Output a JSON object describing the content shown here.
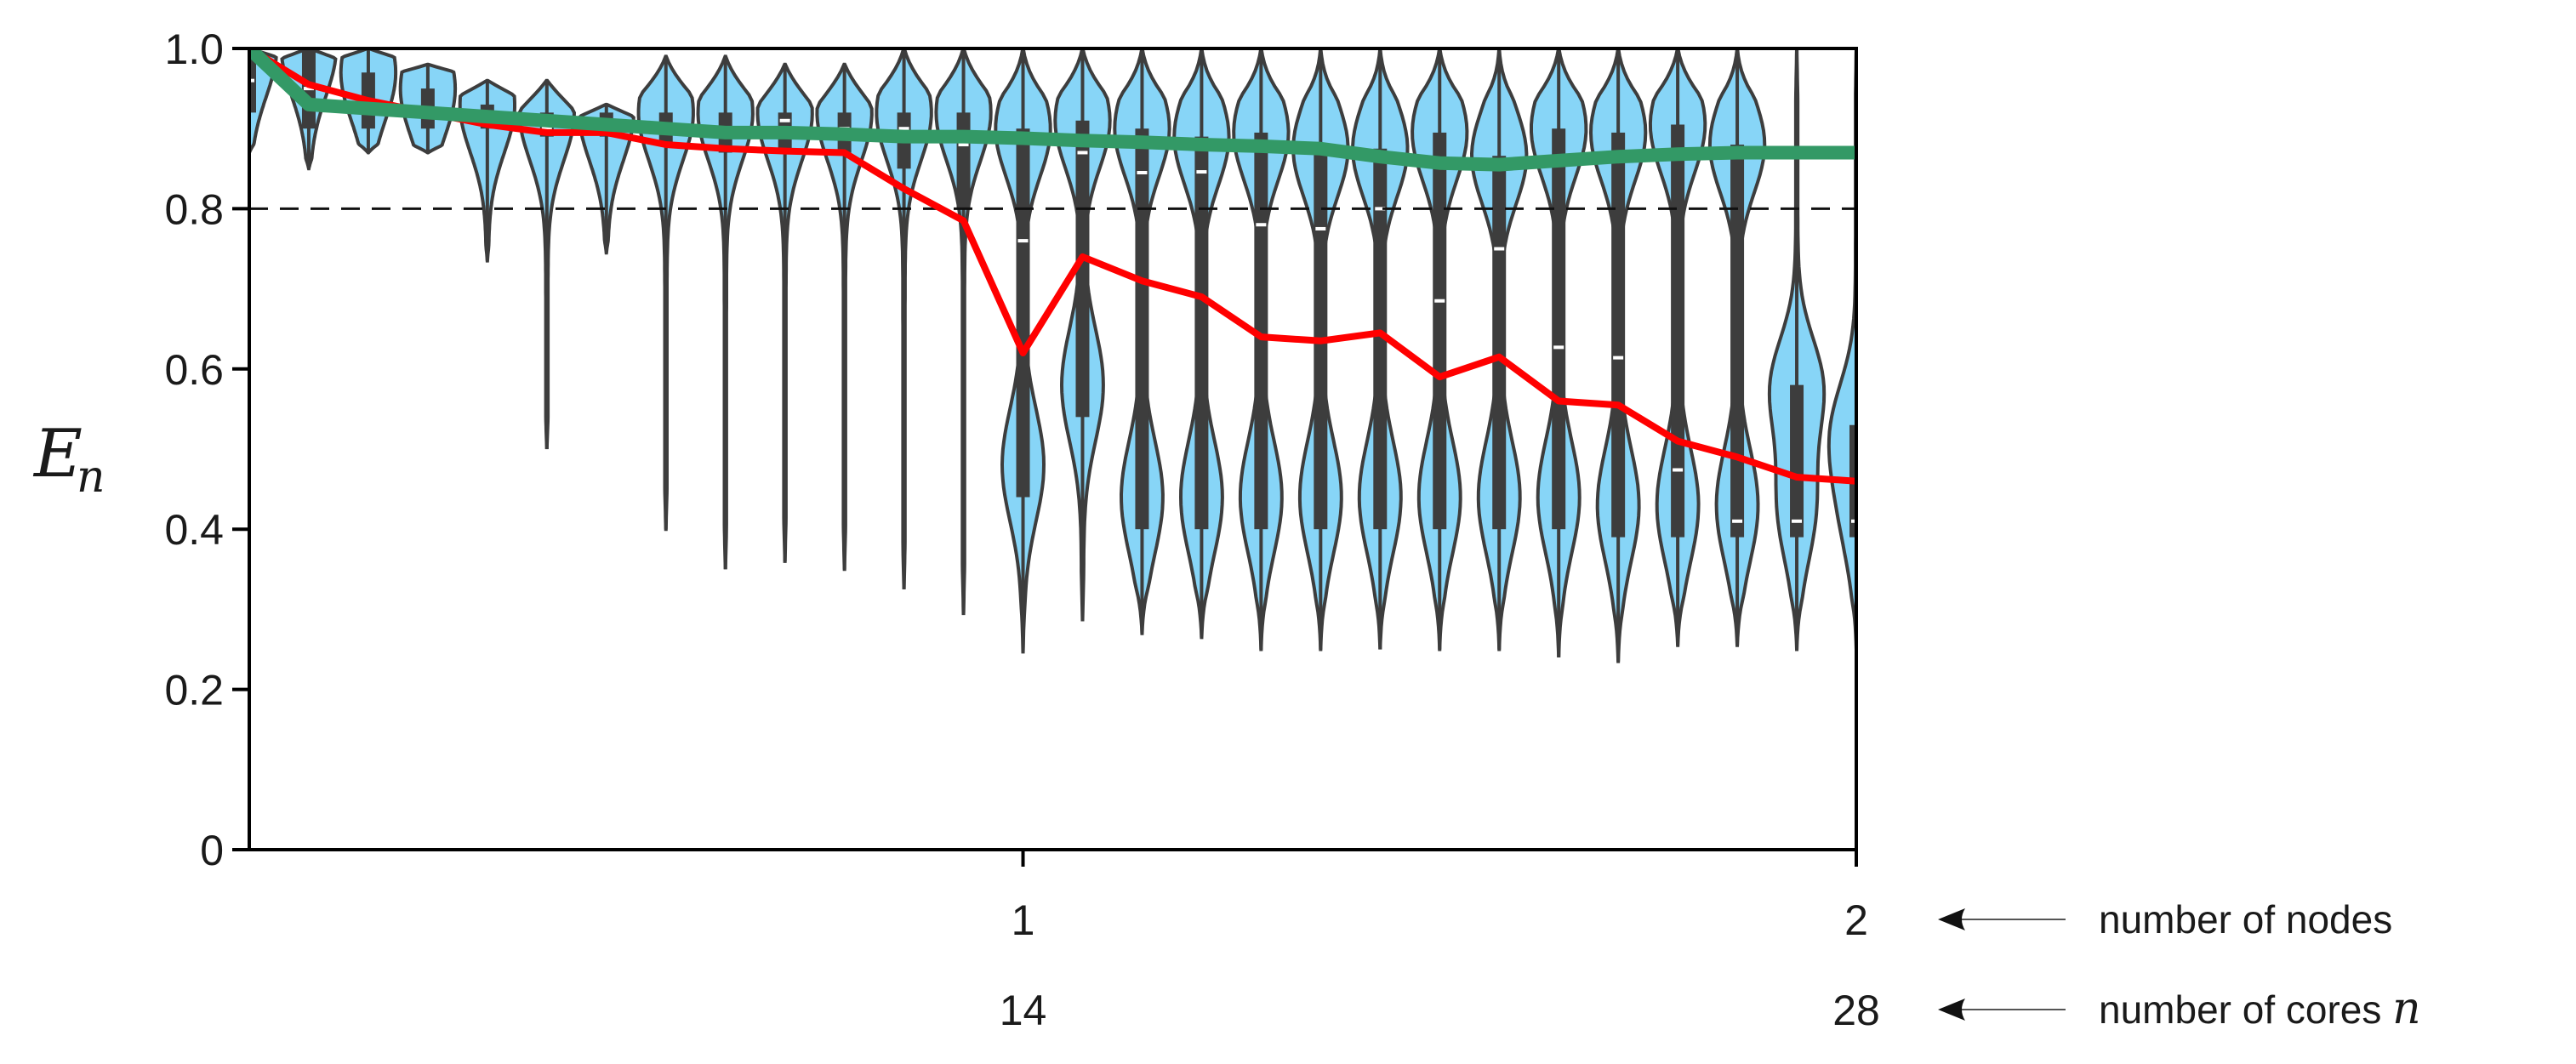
{
  "chart_data": {
    "type": "violin",
    "ylabel": {
      "main": "E",
      "sub": "n"
    },
    "ylim": [
      0,
      1.0
    ],
    "yticks": [
      {
        "v": 0,
        "label": "0"
      },
      {
        "v": 0.2,
        "label": "0.2"
      },
      {
        "v": 0.4,
        "label": "0.4"
      },
      {
        "v": 0.6,
        "label": "0.6"
      },
      {
        "v": 0.8,
        "label": "0.8"
      },
      {
        "v": 1.0,
        "label": "1.0"
      }
    ],
    "xlim": [
      1,
      28
    ],
    "xticks": [
      {
        "cores": 14,
        "nodes_label": "1",
        "cores_label": "14"
      },
      {
        "cores": 28,
        "nodes_label": "2",
        "cores_label": "28"
      }
    ],
    "axis_annotations": {
      "nodes": "number of nodes",
      "cores": "number of cores",
      "cores_symbol": "n"
    },
    "reference_line": {
      "y": 0.8,
      "style": "dashed"
    },
    "cores": [
      1,
      2,
      3,
      4,
      5,
      6,
      7,
      8,
      9,
      10,
      11,
      12,
      13,
      14,
      15,
      16,
      17,
      18,
      19,
      20,
      21,
      22,
      23,
      24,
      25,
      26,
      27,
      28
    ],
    "violins": [
      {
        "min": 0.87,
        "q1": 0.92,
        "median": 0.96,
        "q3": 1.0,
        "max": 1.0
      },
      {
        "min": 0.85,
        "q1": 0.9,
        "median": 0.95,
        "q3": 1.0,
        "max": 1.0
      },
      {
        "min": 0.87,
        "q1": 0.9,
        "median": 0.93,
        "q3": 0.97,
        "max": 1.0
      },
      {
        "min": 0.87,
        "q1": 0.9,
        "median": 0.92,
        "q3": 0.95,
        "max": 0.98
      },
      {
        "min": 0.735,
        "q1": 0.9,
        "median": 0.91,
        "q3": 0.93,
        "max": 0.96
      },
      {
        "min": 0.5,
        "q1": 0.89,
        "median": 0.9,
        "q3": 0.92,
        "max": 0.96
      },
      {
        "min": 0.745,
        "q1": 0.89,
        "median": 0.9,
        "q3": 0.92,
        "max": 0.93
      },
      {
        "min": 0.4,
        "q1": 0.88,
        "median": 0.9,
        "q3": 0.92,
        "max": 0.99
      },
      {
        "min": 0.35,
        "q1": 0.87,
        "median": 0.9,
        "q3": 0.92,
        "max": 0.99
      },
      {
        "min": 0.36,
        "q1": 0.87,
        "median": 0.91,
        "q3": 0.92,
        "max": 0.98
      },
      {
        "min": 0.35,
        "q1": 0.87,
        "median": 0.9,
        "q3": 0.92,
        "max": 0.98
      },
      {
        "min": 0.325,
        "q1": 0.85,
        "median": 0.9,
        "q3": 0.92,
        "max": 1.0
      },
      {
        "min": 0.295,
        "q1": 0.8,
        "median": 0.88,
        "q3": 0.92,
        "max": 1.0
      },
      {
        "min": 0.245,
        "q1": 0.44,
        "median": 0.76,
        "q3": 0.9,
        "max": 1.0
      },
      {
        "min": 0.285,
        "q1": 0.54,
        "median": 0.87,
        "q3": 0.91,
        "max": 1.0
      },
      {
        "min": 0.27,
        "q1": 0.4,
        "median": 0.845,
        "q3": 0.9,
        "max": 1.0
      },
      {
        "min": 0.265,
        "q1": 0.4,
        "median": 0.846,
        "q3": 0.89,
        "max": 1.0
      },
      {
        "min": 0.25,
        "q1": 0.4,
        "median": 0.78,
        "q3": 0.895,
        "max": 1.0
      },
      {
        "min": 0.25,
        "q1": 0.4,
        "median": 0.775,
        "q3": 0.875,
        "max": 1.0
      },
      {
        "min": 0.25,
        "q1": 0.4,
        "median": 0.8,
        "q3": 0.875,
        "max": 1.0
      },
      {
        "min": 0.25,
        "q1": 0.4,
        "median": 0.685,
        "q3": 0.895,
        "max": 1.0
      },
      {
        "min": 0.25,
        "q1": 0.4,
        "median": 0.75,
        "q3": 0.866,
        "max": 1.0
      },
      {
        "min": 0.24,
        "q1": 0.4,
        "median": 0.627,
        "q3": 0.9,
        "max": 1.0
      },
      {
        "min": 0.235,
        "q1": 0.39,
        "median": 0.614,
        "q3": 0.895,
        "max": 1.0
      },
      {
        "min": 0.255,
        "q1": 0.39,
        "median": 0.474,
        "q3": 0.905,
        "max": 1.0
      },
      {
        "min": 0.255,
        "q1": 0.39,
        "median": 0.41,
        "q3": 0.88,
        "max": 1.0
      },
      {
        "min": 0.25,
        "q1": 0.39,
        "median": 0.41,
        "q3": 0.58,
        "max": 1.0
      },
      {
        "min": 0.25,
        "q1": 0.39,
        "median": 0.41,
        "q3": 0.53,
        "max": 1.0
      }
    ],
    "series": [
      {
        "color": "#ff0000",
        "values": [
          1.0,
          0.955,
          0.935,
          0.92,
          0.905,
          0.895,
          0.895,
          0.88,
          0.875,
          0.872,
          0.87,
          0.825,
          0.785,
          0.62,
          0.74,
          0.71,
          0.69,
          0.64,
          0.635,
          0.645,
          0.59,
          0.615,
          0.56,
          0.555,
          0.51,
          0.49,
          0.465,
          0.46
        ]
      },
      {
        "color": "#339966",
        "values": [
          1.0,
          0.93,
          0.925,
          0.92,
          0.915,
          0.91,
          0.905,
          0.9,
          0.895,
          0.895,
          0.893,
          0.89,
          0.89,
          0.888,
          0.885,
          0.883,
          0.88,
          0.878,
          0.875,
          0.865,
          0.857,
          0.855,
          0.86,
          0.865,
          0.868,
          0.87,
          0.87,
          0.87
        ]
      }
    ],
    "colors": {
      "violin_fill": "#87d5f7",
      "violin_edge": "#3d3d3d",
      "box": "#3d3d3d",
      "median": "#ffffff"
    }
  }
}
